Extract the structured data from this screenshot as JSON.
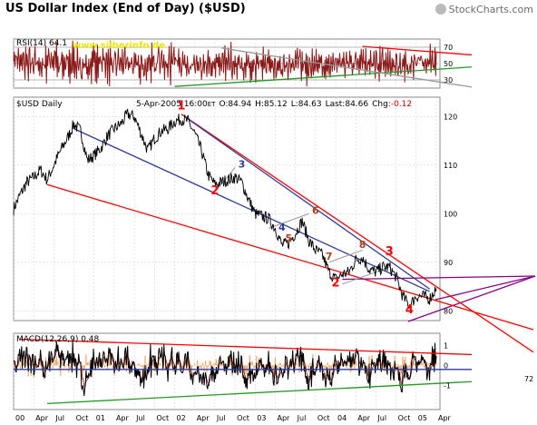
{
  "header": {
    "title": "US Dollar Index (End of Day) ($USD)",
    "brand": "StockCharts.com",
    "brand_icon": "stockcharts-logo-icon"
  },
  "colors": {
    "price": "#000000",
    "rsi": "#8b1a1a",
    "macd": "#000000",
    "macd_signal": "#8b1a1a",
    "macd_histogram": "#f4a460",
    "downtrend_upper": "#ff0000",
    "downtrend_lower": "#ff0000",
    "channel_blue": "#2f3b99",
    "support_green": "#229922",
    "fan_purple": "#880088",
    "wave_labels_red": "#d40000",
    "wave_labels_brown": "#b04020",
    "wave_labels_blue": "#2f3b99",
    "watermark": "#e8e800",
    "grid": "#cccccc"
  },
  "chart_data": [
    {
      "type": "line",
      "panel": "RSI",
      "legend": "RSI(14) 64.1",
      "watermark": "www.silberinfo.de",
      "ylim": [
        20,
        80
      ],
      "y_ticks": [
        "70",
        "50",
        "30"
      ],
      "reference_lines": [
        70,
        50,
        30
      ],
      "last_value": 64.1,
      "trendlines": [
        {
          "name": "",
          "color": "red",
          "from": [
            "2004-05",
            71
          ],
          "to": [
            "2005-04",
            64
          ]
        },
        {
          "name": "",
          "color": "green",
          "from": [
            "2002-01",
            22
          ],
          "to": [
            "2005-04",
            43
          ]
        },
        {
          "name": "",
          "color": "gray",
          "from": [
            "2002-08",
            69
          ],
          "to": [
            "2005-04",
            28
          ]
        }
      ]
    },
    {
      "type": "line",
      "panel": "Price",
      "legend": "$USD Daily",
      "info": {
        "date": "5-Apr-2005",
        "time": "16:00",
        "tz": "ET",
        "open": "O:84.94",
        "high": "H:85.12",
        "low": "L:84.63",
        "last": "Last:84.66",
        "chg_label": "Chg:",
        "chg_value": "-0.12"
      },
      "ylim": [
        78,
        124
      ],
      "y_ticks": [
        "120",
        "110",
        "100",
        "90",
        "80"
      ],
      "x_ticks": [
        "00",
        "Apr",
        "Jul",
        "Oct",
        "01",
        "Apr",
        "Jul",
        "Oct",
        "02",
        "Apr",
        "Jul",
        "Oct",
        "03",
        "Apr",
        "Jul",
        "Oct",
        "04",
        "Apr",
        "Jul",
        "Oct",
        "05",
        "Apr"
      ],
      "series": [
        {
          "values_by_month": [
            [
              "2000-01",
              101.0
            ],
            [
              "2000-02",
              104.0
            ],
            [
              "2000-03",
              106.5
            ],
            [
              "2000-04",
              107.5
            ],
            [
              "2000-05",
              109.0
            ],
            [
              "2000-06",
              107.0
            ],
            [
              "2000-07",
              110.0
            ],
            [
              "2000-08",
              113.0
            ],
            [
              "2000-09",
              115.5
            ],
            [
              "2000-10",
              118.5
            ],
            [
              "2000-11",
              117.0
            ],
            [
              "2000-12",
              111.0
            ],
            [
              "2001-01",
              112.0
            ],
            [
              "2001-02",
              113.5
            ],
            [
              "2001-03",
              116.0
            ],
            [
              "2001-04",
              117.5
            ],
            [
              "2001-05",
              118.5
            ],
            [
              "2001-06",
              120.5
            ],
            [
              "2001-07",
              120.0
            ],
            [
              "2001-08",
              116.5
            ],
            [
              "2001-09",
              113.0
            ],
            [
              "2001-10",
              115.5
            ],
            [
              "2001-11",
              117.0
            ],
            [
              "2001-12",
              117.5
            ],
            [
              "2002-01",
              119.0
            ],
            [
              "2002-02",
              119.5
            ],
            [
              "2002-03",
              119.0
            ],
            [
              "2002-04",
              116.5
            ],
            [
              "2002-05",
              113.0
            ],
            [
              "2002-06",
              108.0
            ],
            [
              "2002-07",
              106.0
            ],
            [
              "2002-08",
              106.5
            ],
            [
              "2002-09",
              107.0
            ],
            [
              "2002-10",
              107.5
            ],
            [
              "2002-11",
              106.5
            ],
            [
              "2002-12",
              103.0
            ],
            [
              "2003-01",
              100.0
            ],
            [
              "2003-02",
              99.5
            ],
            [
              "2003-03",
              99.0
            ],
            [
              "2003-04",
              97.0
            ],
            [
              "2003-05",
              93.5
            ],
            [
              "2003-06",
              94.0
            ],
            [
              "2003-07",
              96.0
            ],
            [
              "2003-08",
              98.5
            ],
            [
              "2003-09",
              94.5
            ],
            [
              "2003-10",
              92.5
            ],
            [
              "2003-11",
              91.5
            ],
            [
              "2003-12",
              88.0
            ],
            [
              "2004-01",
              86.5
            ],
            [
              "2004-02",
              87.5
            ],
            [
              "2004-03",
              88.0
            ],
            [
              "2004-04",
              90.5
            ],
            [
              "2004-05",
              91.0
            ],
            [
              "2004-06",
              88.5
            ],
            [
              "2004-07",
              88.0
            ],
            [
              "2004-08",
              89.0
            ],
            [
              "2004-09",
              89.0
            ],
            [
              "2004-10",
              87.0
            ],
            [
              "2004-11",
              83.0
            ],
            [
              "2004-12",
              81.0
            ],
            [
              "2005-01",
              83.0
            ],
            [
              "2005-02",
              83.0
            ],
            [
              "2005-03",
              82.5
            ],
            [
              "2005-04",
              84.66
            ]
          ]
        }
      ],
      "annotations": [
        {
          "text": "1",
          "at": [
            "2002-02",
            121.5
          ],
          "color": "red"
        },
        {
          "text": "2",
          "at": [
            "2002-07",
            104.0
          ],
          "color": "red"
        },
        {
          "text": "3",
          "at": [
            "2002-11",
            109.5
          ],
          "color": "blue"
        },
        {
          "text": "4",
          "at": [
            "2003-05",
            96.5
          ],
          "color": "blue"
        },
        {
          "text": "5",
          "at": [
            "2003-06",
            94.3
          ],
          "color": "brown"
        },
        {
          "text": "6",
          "at": [
            "2003-10",
            100.0
          ],
          "color": "brown"
        },
        {
          "text": "7",
          "at": [
            "2003-12",
            90.5
          ],
          "color": "brown"
        },
        {
          "text": "8",
          "at": [
            "2004-05",
            93.0
          ],
          "color": "brown"
        },
        {
          "text": "2",
          "at": [
            "2004-01",
            85.0
          ],
          "color": "red"
        },
        {
          "text": "3",
          "at": [
            "2004-09",
            91.5
          ],
          "color": "red"
        },
        {
          "text": "4",
          "at": [
            "2004-12",
            79.5
          ],
          "color": "red"
        }
      ],
      "trendlines": [
        {
          "name": "",
          "color": "red",
          "from": [
            "2000-06",
            106.0
          ],
          "to": [
            "2005-03",
            82.5
          ]
        },
        {
          "name": "",
          "color": "red",
          "from": [
            "2002-02",
            120.5
          ],
          "to": [
            "2005-04",
            85.0
          ]
        },
        {
          "name": "",
          "color": "blue",
          "from": [
            "2000-10",
            117.5
          ],
          "to": [
            "2005-03",
            84.0
          ]
        },
        {
          "name": "",
          "color": "blue",
          "from": [
            "2002-03",
            119.5
          ],
          "to": [
            "2005-03",
            84.5
          ]
        },
        {
          "name": "",
          "color": "purple",
          "from": [
            "2004-02",
            86.5
          ],
          "to": [
            "2005-04",
            89.5
          ]
        }
      ]
    },
    {
      "type": "line",
      "panel": "MACD",
      "legend": "MACD(12,26,9) 0.48",
      "ylim": [
        -2.2,
        1.6
      ],
      "y_ticks": [
        "1",
        "0",
        "-1"
      ],
      "last_value": 0.48,
      "trendlines": [
        {
          "name": "",
          "color": "red",
          "from": [
            "2000-02",
            1.3
          ],
          "to": [
            "2005-04",
            0.6
          ]
        },
        {
          "name": "",
          "color": "green",
          "from": [
            "2000-06",
            -1.9
          ],
          "to": [
            "2005-04",
            -0.9
          ]
        },
        {
          "name": "",
          "color": "blue",
          "from": [
            "2000-01",
            -0.2
          ],
          "to": [
            "2005-04",
            -0.2
          ]
        }
      ],
      "extension_labels": [
        "72"
      ]
    }
  ]
}
